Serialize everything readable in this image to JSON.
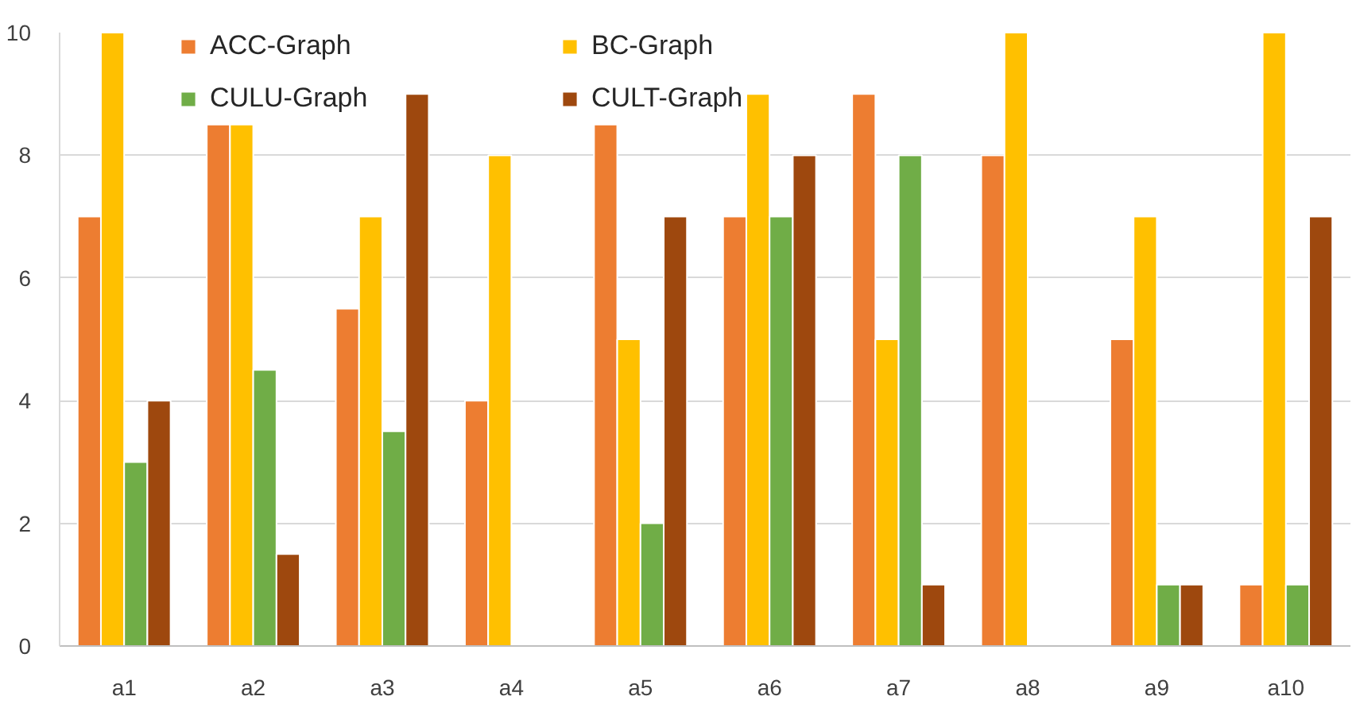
{
  "chart_data": {
    "type": "bar",
    "categories": [
      "a1",
      "a2",
      "a3",
      "a4",
      "a5",
      "a6",
      "a7",
      "a8",
      "a9",
      "a10"
    ],
    "series": [
      {
        "name": "ACC-Graph",
        "color": "#ed7d31",
        "values": [
          7,
          8.5,
          5.5,
          4,
          8.5,
          7,
          9,
          8,
          5,
          1
        ]
      },
      {
        "name": "BC-Graph",
        "color": "#ffc000",
        "values": [
          10,
          8.5,
          7,
          8,
          5,
          9,
          5,
          10,
          7,
          10
        ]
      },
      {
        "name": "CULU-Graph",
        "color": "#70ad47",
        "values": [
          3,
          4.5,
          3.5,
          null,
          2,
          7,
          8,
          null,
          1,
          1
        ]
      },
      {
        "name": "CULT-Graph",
        "color": "#9e480e",
        "values": [
          4,
          1.5,
          9,
          null,
          7,
          8,
          1,
          null,
          1,
          7
        ]
      }
    ],
    "ylim": [
      0,
      10
    ],
    "yticks": [
      0,
      2,
      4,
      6,
      8,
      10
    ],
    "grid": "y",
    "legend": "top left"
  }
}
